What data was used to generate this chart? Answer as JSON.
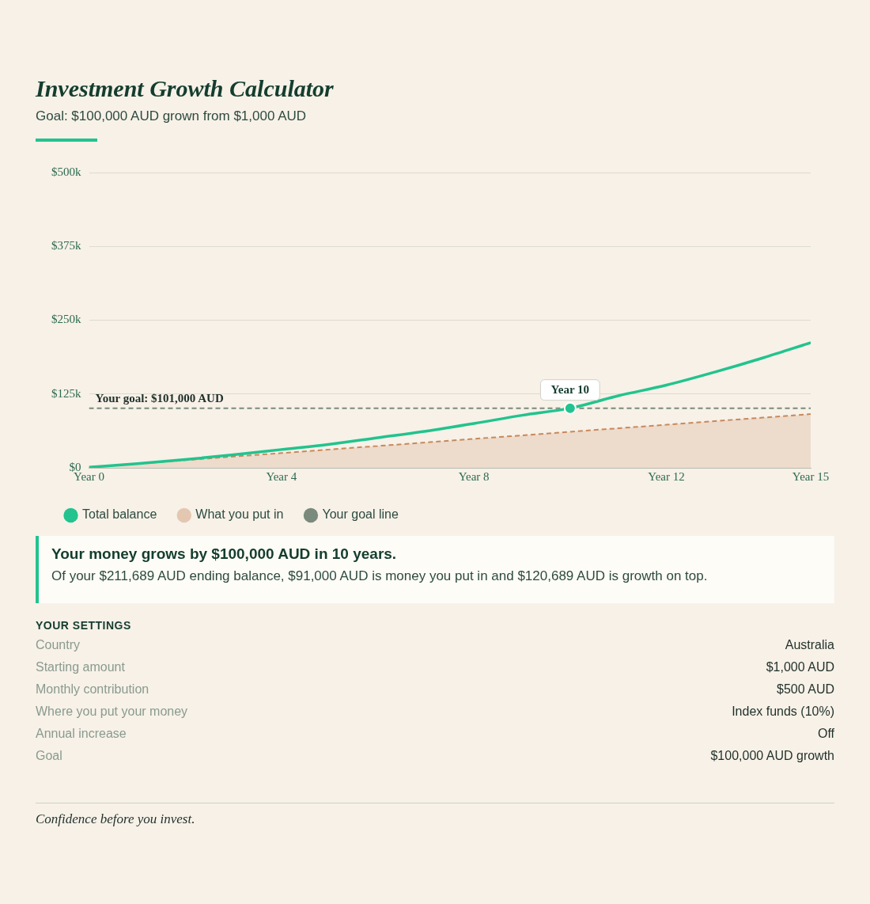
{
  "chart_data": {
    "type": "line",
    "title": "Investment Growth Calculator",
    "subtitle": "Goal: $100,000 AUD grown from $1,000 AUD",
    "categories": [
      "Year 0",
      null,
      null,
      null,
      "Year 4",
      null,
      null,
      null,
      "Year 8",
      null,
      null,
      null,
      "Year 12",
      null,
      null,
      "Year 15"
    ],
    "series": [
      {
        "name": "Total balance",
        "color": "#22c38e",
        "values": [
          1000,
          7000,
          14000,
          22000,
          31000,
          40000,
          51000,
          62000,
          75000,
          89000,
          101000,
          122000,
          140000,
          162000,
          186000,
          212000
        ]
      },
      {
        "name": "What you put in",
        "type": "area",
        "color": "#c8895c",
        "line_style": "dashed",
        "values": [
          1000,
          7000,
          13000,
          19000,
          25000,
          31000,
          37000,
          43000,
          49000,
          55000,
          61000,
          67000,
          73000,
          79000,
          85000,
          91000
        ]
      },
      {
        "name": "Your goal line",
        "color": "#7a8a7c",
        "line_style": "dashed",
        "values": [
          101000,
          101000,
          101000,
          101000,
          101000,
          101000,
          101000,
          101000,
          101000,
          101000,
          101000,
          101000,
          101000,
          101000,
          101000,
          101000
        ]
      }
    ],
    "ylim": [
      0,
      500000
    ],
    "yticks": [
      {
        "value": 0,
        "label": "$0"
      },
      {
        "value": 125000,
        "label": "$125k"
      },
      {
        "value": 250000,
        "label": "$250k"
      },
      {
        "value": 375000,
        "label": "$375k"
      },
      {
        "value": 500000,
        "label": "$500k"
      }
    ],
    "grid": "y",
    "legend": "bottom left",
    "marker": "none",
    "annotations": [
      {
        "text": "Year 10",
        "y": 101000
      },
      {
        "text": "Your goal: $101,000 AUD",
        "y": 101000
      },
      "Your money grows by $100,000 AUD in 10 years.",
      "Of your $211,689 AUD ending balance, $91,000 AUD is money you put in and $120,689 AUD is growth on top.",
      "YOUR SETTINGS",
      "Country",
      "Australia",
      "Starting amount",
      "$1,000 AUD",
      "Monthly contribution",
      "$500 AUD",
      "Where you put your money",
      "Index funds (10%)",
      "Annual increase",
      "Off",
      "Goal",
      "$100,000 AUD growth",
      "Confidence before you invest."
    ]
  }
}
